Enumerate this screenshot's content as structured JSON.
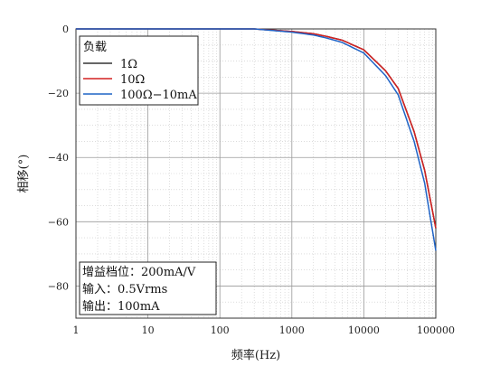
{
  "chart_data": {
    "type": "line",
    "xlabel": "频率(Hz)",
    "ylabel": "相移(°)",
    "xscale": "log",
    "xlim": [
      1,
      100000
    ],
    "ylim": [
      -90,
      0
    ],
    "xticks": [
      1,
      10,
      100,
      1000,
      10000,
      100000
    ],
    "xtick_labels": [
      "1",
      "10",
      "100",
      "1000",
      "10000",
      "100000"
    ],
    "yticks": [
      0,
      -20,
      -40,
      -60,
      -80
    ],
    "ytick_labels": [
      "0",
      "−20",
      "−40",
      "−60",
      "−80"
    ],
    "grid": true,
    "legend": {
      "title": "负载",
      "placement": "top-left",
      "entries": [
        "1Ω",
        "10Ω",
        "100Ω−10mA"
      ]
    },
    "series": [
      {
        "name": "1Ω",
        "color": "#333333",
        "x": [
          1,
          10,
          100,
          300,
          1000,
          2000,
          3000,
          5000,
          10000,
          20000,
          30000,
          50000,
          70000,
          100000
        ],
        "y": [
          0,
          0,
          0,
          0,
          -0.8,
          -1.5,
          -2.3,
          -3.5,
          -6.5,
          -13,
          -18.5,
          -32,
          -44,
          -62
        ]
      },
      {
        "name": "10Ω",
        "color": "#d42020",
        "x": [
          1,
          10,
          100,
          300,
          1000,
          2000,
          3000,
          5000,
          10000,
          20000,
          30000,
          50000,
          70000,
          100000
        ],
        "y": [
          0,
          0,
          0,
          0,
          -0.8,
          -1.5,
          -2.3,
          -3.5,
          -6.5,
          -13,
          -18.5,
          -32,
          -44,
          -62
        ]
      },
      {
        "name": "100Ω−10mA",
        "color": "#1f63c6",
        "x": [
          1,
          10,
          100,
          300,
          1000,
          2000,
          3000,
          5000,
          10000,
          20000,
          30000,
          50000,
          70000,
          100000
        ],
        "y": [
          0,
          0,
          0,
          0,
          -1,
          -1.9,
          -2.8,
          -4.2,
          -7.5,
          -14.5,
          -20.5,
          -35,
          -48,
          -69
        ]
      }
    ],
    "annotation": [
      "增益档位：200mA/V",
      "输入：0.5Vrms",
      "输出：100mA"
    ]
  }
}
